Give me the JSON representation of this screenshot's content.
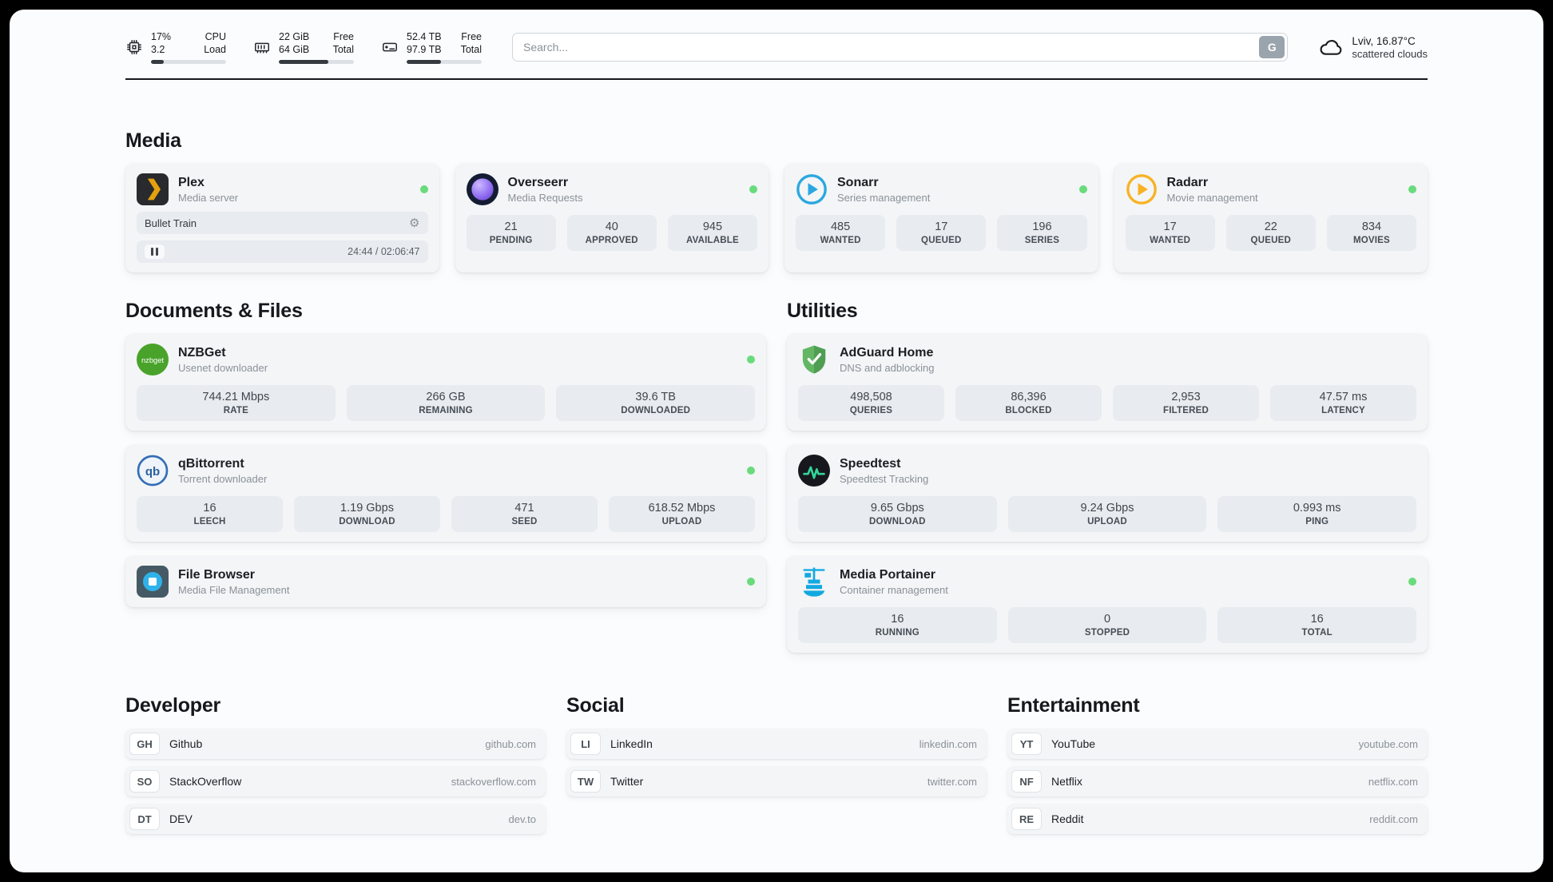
{
  "header": {
    "metrics": [
      {
        "icon": "cpu",
        "row1_value": "17%",
        "row1_label": "CPU",
        "row2_value": "3.2",
        "row2_label": "Load",
        "progress": 17
      },
      {
        "icon": "memory",
        "row1_value": "22 GiB",
        "row1_label": "Free",
        "row2_value": "64 GiB",
        "row2_label": "Total",
        "progress": 66
      },
      {
        "icon": "disk",
        "row1_value": "52.4 TB",
        "row1_label": "Free",
        "row2_value": "97.9 TB",
        "row2_label": "Total",
        "progress": 46
      }
    ],
    "search": {
      "placeholder": "Search...",
      "engine_label": "G"
    },
    "weather": {
      "location": "Lviv, 16.87°C",
      "condition": "scattered clouds"
    }
  },
  "sections": {
    "media": {
      "title": "Media",
      "apps": [
        {
          "name": "Plex",
          "description": "Media server",
          "online": true,
          "player": {
            "title": "Bullet Train",
            "time": "24:44 / 02:06:47"
          }
        },
        {
          "name": "Overseerr",
          "description": "Media Requests",
          "online": true,
          "stats": [
            {
              "value": "21",
              "label": "PENDING"
            },
            {
              "value": "40",
              "label": "APPROVED"
            },
            {
              "value": "945",
              "label": "AVAILABLE"
            }
          ]
        },
        {
          "name": "Sonarr",
          "description": "Series management",
          "online": true,
          "stats": [
            {
              "value": "485",
              "label": "WANTED"
            },
            {
              "value": "17",
              "label": "QUEUED"
            },
            {
              "value": "196",
              "label": "SERIES"
            }
          ]
        },
        {
          "name": "Radarr",
          "description": "Movie management",
          "online": true,
          "stats": [
            {
              "value": "17",
              "label": "WANTED"
            },
            {
              "value": "22",
              "label": "QUEUED"
            },
            {
              "value": "834",
              "label": "MOVIES"
            }
          ]
        }
      ]
    },
    "documents": {
      "title": "Documents & Files",
      "apps": [
        {
          "name": "NZBGet",
          "description": "Usenet downloader",
          "online": true,
          "icon_text": "nzbget",
          "stats": [
            {
              "value": "744.21 Mbps",
              "label": "RATE"
            },
            {
              "value": "266 GB",
              "label": "REMAINING"
            },
            {
              "value": "39.6 TB",
              "label": "DOWNLOADED"
            }
          ]
        },
        {
          "name": "qBittorrent",
          "description": "Torrent downloader",
          "online": true,
          "icon_text": "qb",
          "stats": [
            {
              "value": "16",
              "label": "LEECH"
            },
            {
              "value": "1.19 Gbps",
              "label": "DOWNLOAD"
            },
            {
              "value": "471",
              "label": "SEED"
            },
            {
              "value": "618.52 Mbps",
              "label": "UPLOAD"
            }
          ]
        },
        {
          "name": "File Browser",
          "description": "Media File Management",
          "online": true
        }
      ]
    },
    "utilities": {
      "title": "Utilities",
      "apps": [
        {
          "name": "AdGuard Home",
          "description": "DNS and adblocking",
          "online": false,
          "stats": [
            {
              "value": "498,508",
              "label": "QUERIES"
            },
            {
              "value": "86,396",
              "label": "BLOCKED"
            },
            {
              "value": "2,953",
              "label": "FILTERED"
            },
            {
              "value": "47.57 ms",
              "label": "LATENCY"
            }
          ]
        },
        {
          "name": "Speedtest",
          "description": "Speedtest Tracking",
          "online": false,
          "stats": [
            {
              "value": "9.65 Gbps",
              "label": "DOWNLOAD"
            },
            {
              "value": "9.24 Gbps",
              "label": "UPLOAD"
            },
            {
              "value": "0.993 ms",
              "label": "PING"
            }
          ]
        },
        {
          "name": "Media Portainer",
          "description": "Container management",
          "online": true,
          "stats": [
            {
              "value": "16",
              "label": "RUNNING"
            },
            {
              "value": "0",
              "label": "STOPPED"
            },
            {
              "value": "16",
              "label": "TOTAL"
            }
          ]
        }
      ]
    },
    "bookmarks": [
      {
        "title": "Developer",
        "links": [
          {
            "abbr": "GH",
            "name": "Github",
            "url": "github.com"
          },
          {
            "abbr": "SO",
            "name": "StackOverflow",
            "url": "stackoverflow.com"
          },
          {
            "abbr": "DT",
            "name": "DEV",
            "url": "dev.to"
          }
        ]
      },
      {
        "title": "Social",
        "links": [
          {
            "abbr": "LI",
            "name": "LinkedIn",
            "url": "linkedin.com"
          },
          {
            "abbr": "TW",
            "name": "Twitter",
            "url": "twitter.com"
          }
        ]
      },
      {
        "title": "Entertainment",
        "links": [
          {
            "abbr": "YT",
            "name": "YouTube",
            "url": "youtube.com"
          },
          {
            "abbr": "NF",
            "name": "Netflix",
            "url": "netflix.com"
          },
          {
            "abbr": "RE",
            "name": "Reddit",
            "url": "reddit.com"
          }
        ]
      }
    ]
  },
  "colors": {
    "status_online": "#69db7c",
    "plex": "#e5a00d",
    "overseerr": "#8e6cf1",
    "sonarr": "#2aa7e0",
    "radarr": "#f8b224",
    "nzbget": "#49a32a",
    "qbittorrent": "#356eb5",
    "filebrowser": "#2fb2ea",
    "adguard": "#63b663",
    "speedtest": "#34d399",
    "portainer": "#12a9e0"
  }
}
